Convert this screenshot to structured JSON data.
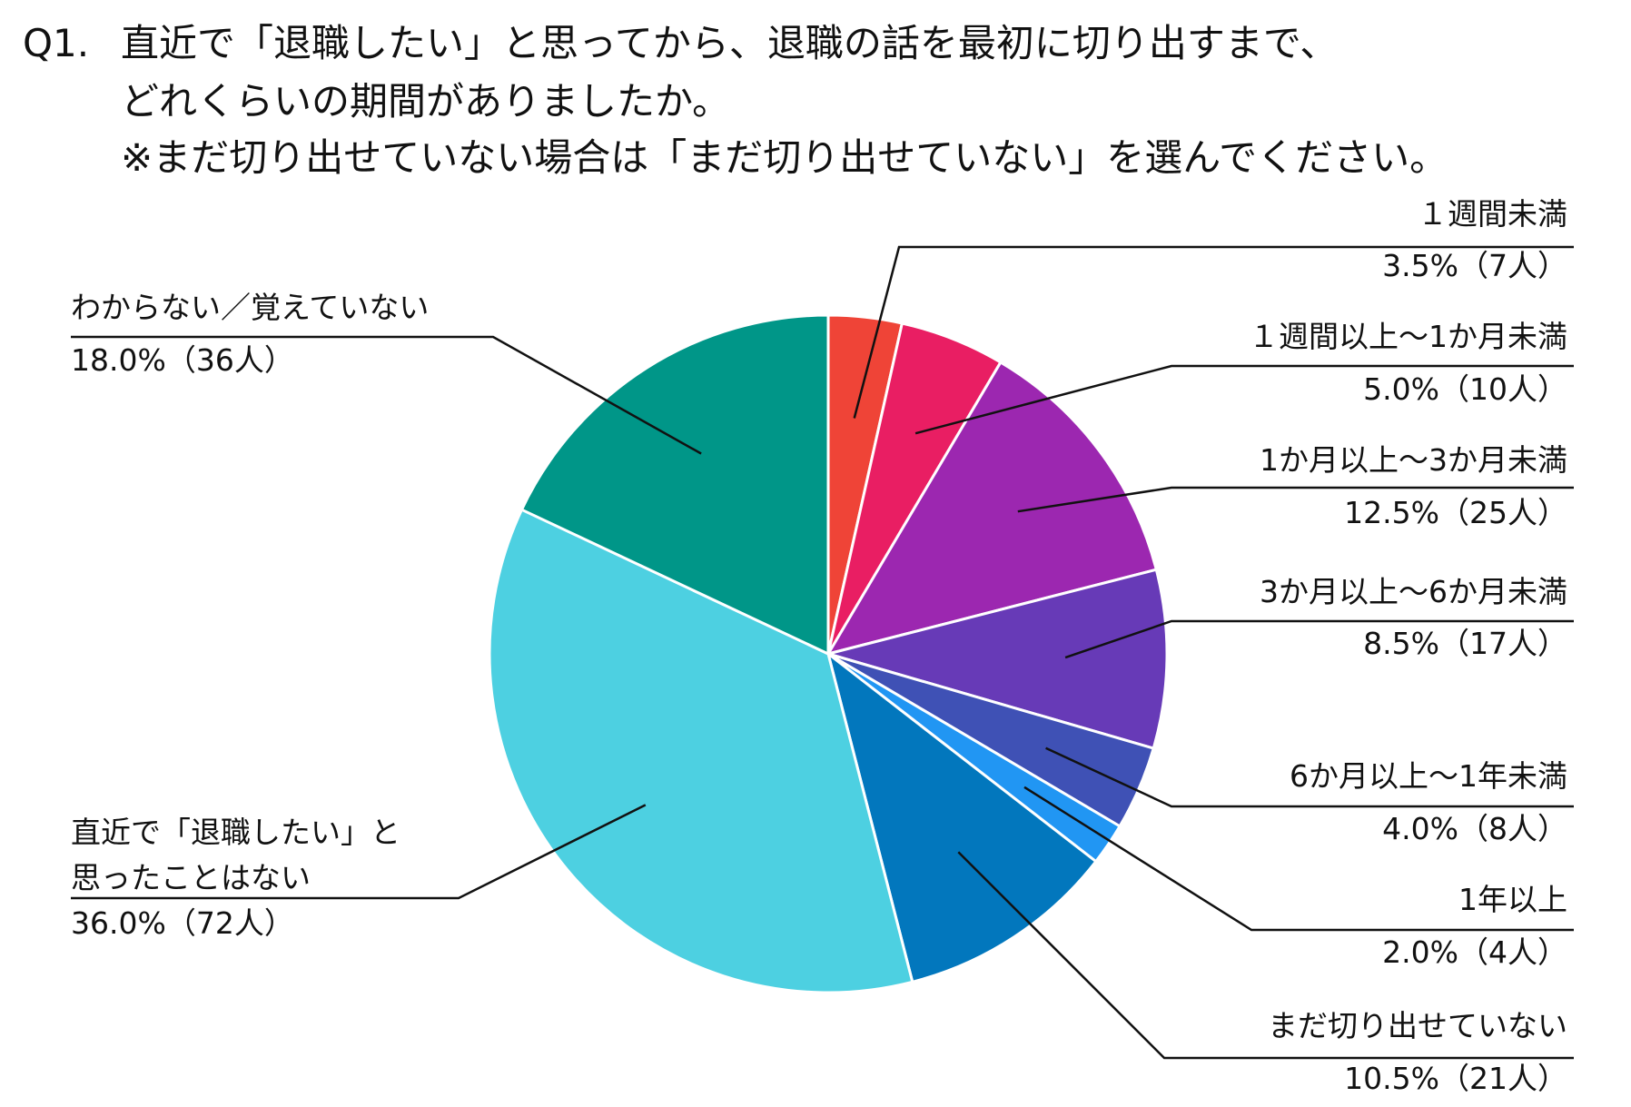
{
  "question": {
    "number": "Q1.",
    "lines": [
      "直近で「退職したい」と思ってから、退職の話を最初に切り出すまで、",
      "どれくらいの期間がありましたか。",
      "※まだ切り出せていない場合は「まだ切り出せていない」を選んでください。"
    ]
  },
  "chart_data": {
    "type": "pie",
    "start_angle_deg": 0,
    "direction": "clockwise",
    "slices": [
      {
        "label": "１週間未満",
        "value": 3.5,
        "count": 7,
        "value_text": "3.5%（7人）",
        "color": "#EF4437"
      },
      {
        "label": "１週間以上～1か月未満",
        "value": 5.0,
        "count": 10,
        "value_text": "5.0%（10人）",
        "color": "#E91E63"
      },
      {
        "label": "1か月以上～3か月未満",
        "value": 12.5,
        "count": 25,
        "value_text": "12.5%（25人）",
        "color": "#9C27B0"
      },
      {
        "label": "3か月以上～6か月未満",
        "value": 8.5,
        "count": 17,
        "value_text": "8.5%（17人）",
        "color": "#673AB7"
      },
      {
        "label": "6か月以上～1年未満",
        "value": 4.0,
        "count": 8,
        "value_text": "4.0%（8人）",
        "color": "#3F51B5"
      },
      {
        "label": "1年以上",
        "value": 2.0,
        "count": 4,
        "value_text": "2.0%（4人）",
        "color": "#2196F3"
      },
      {
        "label": "まだ切り出せていない",
        "value": 10.5,
        "count": 21,
        "value_text": "10.5%（21人）",
        "color": "#0277BD"
      },
      {
        "label": "直近で「退職したい」と\n思ったことはない",
        "value": 36.0,
        "count": 72,
        "value_text": "36.0%（72人）",
        "color": "#4DD0E1"
      },
      {
        "label": "わからない／覚えていない",
        "value": 18.0,
        "count": 36,
        "value_text": "18.0%（36人）",
        "color": "#009688"
      }
    ]
  }
}
